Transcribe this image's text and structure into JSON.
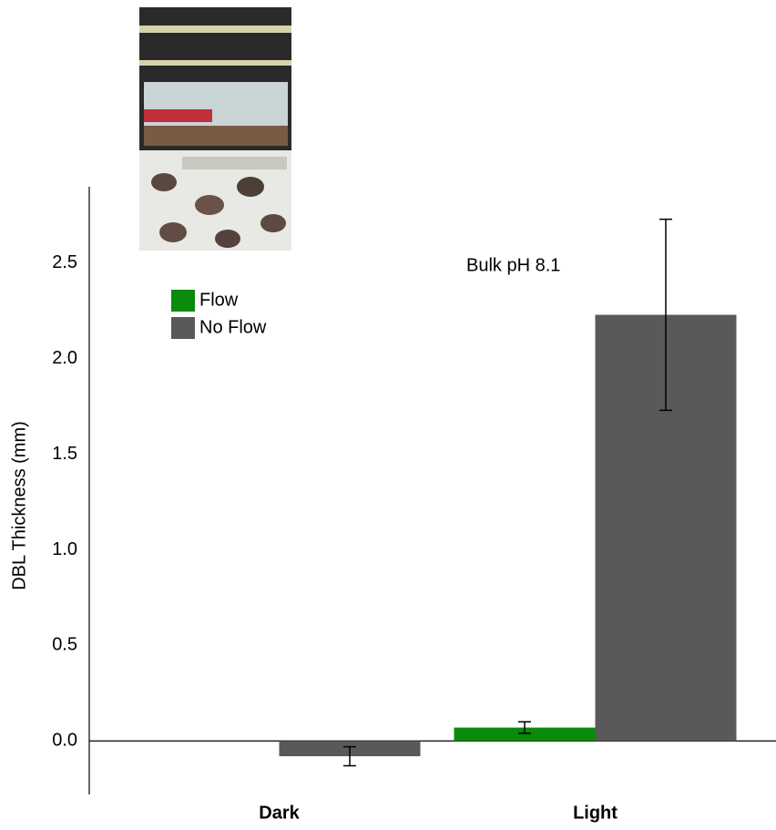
{
  "chart_data": {
    "type": "bar",
    "annotation": "Bulk pH 8.1",
    "y_label": "DBL Thickness (mm)",
    "categories": [
      "Dark",
      "Light"
    ],
    "series": [
      {
        "name": "Flow",
        "color": "#0b8a0b",
        "values": [
          null,
          0.07
        ],
        "errors": [
          null,
          0.03
        ]
      },
      {
        "name": "No Flow",
        "color": "#595959",
        "values": [
          -0.08,
          2.23
        ],
        "errors": [
          0.05,
          0.5
        ]
      }
    ],
    "ylim": [
      -0.28,
      2.9
    ],
    "yticks": [
      0.0,
      0.5,
      1.0,
      1.5,
      2.0,
      2.5
    ],
    "legend": "upper left"
  }
}
